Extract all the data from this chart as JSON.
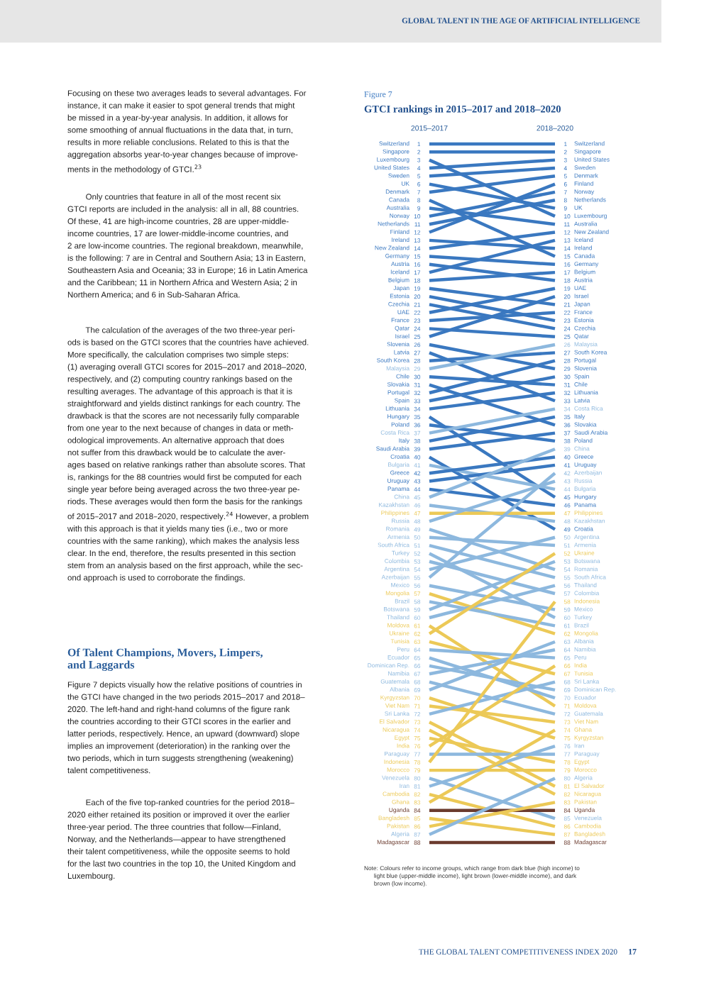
{
  "chart_data": {
    "type": "line",
    "subtitle": "Figure 7",
    "title": "GTCI rankings in 2015–2017 and 2018–2020",
    "categories": [
      "2015–2017",
      "2018–2020"
    ],
    "ylim": [
      88,
      1
    ],
    "yticks": [
      1,
      2,
      3,
      4,
      5,
      6,
      7,
      8,
      9,
      10,
      11,
      12,
      13,
      14,
      15,
      16,
      17,
      18,
      19,
      20,
      21,
      22,
      23,
      24,
      25,
      26,
      27,
      28,
      29,
      30,
      31,
      32,
      33,
      34,
      35,
      36,
      37,
      38,
      39,
      40,
      41,
      42,
      43,
      44,
      45,
      46,
      47,
      48,
      49,
      50,
      51,
      52,
      53,
      54,
      55,
      56,
      57,
      58,
      59,
      60,
      61,
      62,
      63,
      64,
      65,
      66,
      67,
      68,
      69,
      70,
      71,
      72,
      73,
      74,
      75,
      76,
      77,
      78,
      79,
      80,
      81,
      82,
      83,
      84,
      85,
      86,
      87,
      88
    ],
    "y2lim": [
      88,
      1
    ],
    "y2ticks": [
      1,
      2,
      3,
      4,
      5,
      6,
      7,
      8,
      9,
      10,
      11,
      12,
      13,
      14,
      15,
      16,
      17,
      18,
      19,
      20,
      21,
      22,
      23,
      24,
      25,
      26,
      27,
      28,
      29,
      30,
      31,
      32,
      33,
      34,
      35,
      36,
      37,
      38,
      39,
      40,
      41,
      42,
      43,
      44,
      45,
      46,
      47,
      48,
      49,
      50,
      51,
      52,
      53,
      54,
      55,
      56,
      57,
      58,
      59,
      60,
      61,
      62,
      63,
      64,
      65,
      66,
      67,
      68,
      69,
      70,
      71,
      72,
      73,
      74,
      75,
      76,
      77,
      78,
      79,
      80,
      81,
      82,
      83,
      84,
      85,
      86,
      87,
      88
    ],
    "marker": "none",
    "line_style": "solid",
    "annotations": [
      "GLOBAL TALENT IN THE AGE OF ARTIFICIAL INTELLIGENCE",
      "Focusing on these two averages leads to several advantages. For\ninstance, it can make it easier to spot general trends that might\nbe missed in a year-by-year analysis. In addition, it allows for\nsome smoothing of annual fluctuations in the data that, in turn,\nresults in more reliable conclusions. Related to this is that the\naggregation absorbs year-to-year changes because of improve-\nments in the methodology of GTCI.$^{23}$",
      "        Only countries that feature in all of the most recent six\nGTCI reports are included in the analysis: all in all, 88 countries.\nOf these, 41 are high-income countries, 28 are upper-middle-\nincome countries, 17 are lower-middle-income countries, and\n2 are low-income countries. The regional breakdown, meanwhile,\nis the following: 7 are in Central and Southern Asia; 13 in Eastern,\nSoutheastern Asia and Oceania; 33 in Europe; 16 in Latin America\nand the Caribbean; 11 in Northern Africa and Western Asia; 2 in\nNorthern America; and 6 in Sub-Saharan Africa.",
      "        The calculation of the averages of the two three-year peri-\nods is based on the GTCI scores that the countries have achieved.\nMore specifically, the calculation comprises two simple steps:\n(1) averaging overall GTCI scores for 2015–2017 and 2018–2020,\nrespectively, and (2) computing country rankings based on the\nresulting averages. The advantage of this approach is that it is\nstraightforward and yields distinct rankings for each country. The\ndrawback is that the scores are not necessarily fully comparable\nfrom one year to the next because of changes in data or meth-\nodological improvements. An alternative approach that does\nnot suffer from this drawback would be to calculate the aver-\nages based on relative rankings rather than absolute scores. That\nis, rankings for the 88 countries would first be computed for each\nsingle year before being averaged across the two three-year pe-\nriods. These averages would then form the basis for the rankings\nof 2015–2017 and 2018–2020, respectively.$^{24}$ However, a problem\nwith this approach is that it yields many ties (i.e., two or more\ncountries with the same ranking), which makes the analysis less\nclear. In the end, therefore, the results presented in this section\nstem from an analysis based on the first approach, while the sec-\nond approach is used to corroborate the findings.",
      "Of Talent Champions, Movers, Limpers,\nand Laggards",
      "Figure 7 depicts visually how the relative positions of countries in\nthe GTCI have changed in the two periods 2015–2017 and 2018–\n2020. The left-hand and right-hand columns of the figure rank\nthe countries according to their GTCI scores in the earlier and\nlatter periods, respectively. Hence, an upward (downward) slope\nimplies an improvement (deterioration) in the ranking over the\ntwo periods, which in turn suggests strengthening (weakening)\ntalent competitiveness.",
      "        Each of the five top-ranked countries for the period 2018–\n2020 either retained its position or improved it over the earlier\nthree-year period. The three countries that follow—Finland,\nNorway, and the Netherlands—appear to have strengthened\ntheir talent competitiveness, while the opposite seems to hold\nfor the last two countries in the top 10, the United Kingdom and\nLuxembourg.",
      "Note: Colours refer to income groups, which range from dark blue (high income) to\n      light blue (upper-middle income), light brown (lower-middle income), and dark\n      brown (low income).",
      "THE GLOBAL TALENT COMPETITIVENESS INDEX 2020",
      "17"
    ],
    "series": [
      {
        "name": "Switzerland",
        "color": "#3a78c0",
        "values": [
          1,
          1
        ]
      },
      {
        "name": "Singapore",
        "color": "#3a78c0",
        "values": [
          2,
          2
        ]
      },
      {
        "name": "Luxembourg",
        "color": "#3a78c0",
        "values": [
          3,
          10
        ]
      },
      {
        "name": "United States",
        "color": "#3a78c0",
        "values": [
          4,
          3
        ]
      },
      {
        "name": "Sweden",
        "color": "#3a78c0",
        "values": [
          5,
          4
        ]
      },
      {
        "name": "UK",
        "color": "#3a78c0",
        "values": [
          6,
          9
        ]
      },
      {
        "name": "Denmark",
        "color": "#3a78c0",
        "values": [
          7,
          5
        ]
      },
      {
        "name": "Canada",
        "color": "#3a78c0",
        "values": [
          8,
          15
        ]
      },
      {
        "name": "Australia",
        "color": "#3a78c0",
        "values": [
          9,
          11
        ]
      },
      {
        "name": "Norway",
        "color": "#3a78c0",
        "values": [
          10,
          7
        ]
      },
      {
        "name": "Netherlands",
        "color": "#3a78c0",
        "values": [
          11,
          8
        ]
      },
      {
        "name": "Finland",
        "color": "#3a78c0",
        "values": [
          12,
          6
        ]
      },
      {
        "name": "Ireland",
        "color": "#3a78c0",
        "values": [
          13,
          14
        ]
      },
      {
        "name": "New Zealand",
        "color": "#3a78c0",
        "values": [
          14,
          12
        ]
      },
      {
        "name": "Germany",
        "color": "#3a78c0",
        "values": [
          15,
          16
        ]
      },
      {
        "name": "Austria",
        "color": "#3a78c0",
        "values": [
          16,
          18
        ]
      },
      {
        "name": "Iceland",
        "color": "#3a78c0",
        "values": [
          17,
          13
        ]
      },
      {
        "name": "Belgium",
        "color": "#3a78c0",
        "values": [
          18,
          17
        ]
      },
      {
        "name": "Japan",
        "color": "#3a78c0",
        "values": [
          19,
          21
        ]
      },
      {
        "name": "Estonia",
        "color": "#3a78c0",
        "values": [
          20,
          23
        ]
      },
      {
        "name": "Czechia",
        "color": "#3a78c0",
        "values": [
          21,
          24
        ]
      },
      {
        "name": "UAE",
        "color": "#3a78c0",
        "values": [
          22,
          19
        ]
      },
      {
        "name": "France",
        "color": "#3a78c0",
        "values": [
          23,
          22
        ]
      },
      {
        "name": "Qatar",
        "color": "#3a78c0",
        "values": [
          24,
          25
        ]
      },
      {
        "name": "Israel",
        "color": "#3a78c0",
        "values": [
          25,
          20
        ]
      },
      {
        "name": "Slovenia",
        "color": "#3a78c0",
        "values": [
          26,
          29
        ]
      },
      {
        "name": "Latvia",
        "color": "#3a78c0",
        "values": [
          27,
          33
        ]
      },
      {
        "name": "South Korea",
        "color": "#3a78c0",
        "values": [
          28,
          27
        ]
      },
      {
        "name": "Malaysia",
        "color": "#8db8de",
        "values": [
          29,
          26
        ]
      },
      {
        "name": "Chile",
        "color": "#3a78c0",
        "values": [
          30,
          31
        ]
      },
      {
        "name": "Slovakia",
        "color": "#3a78c0",
        "values": [
          31,
          36
        ]
      },
      {
        "name": "Portugal",
        "color": "#3a78c0",
        "values": [
          32,
          28
        ]
      },
      {
        "name": "Spain",
        "color": "#3a78c0",
        "values": [
          33,
          30
        ]
      },
      {
        "name": "Lithuania",
        "color": "#3a78c0",
        "values": [
          34,
          32
        ]
      },
      {
        "name": "Hungary",
        "color": "#3a78c0",
        "values": [
          35,
          45
        ]
      },
      {
        "name": "Poland",
        "color": "#3a78c0",
        "values": [
          36,
          38
        ]
      },
      {
        "name": "Costa Rica",
        "color": "#8db8de",
        "values": [
          37,
          34
        ]
      },
      {
        "name": "Italy",
        "color": "#3a78c0",
        "values": [
          38,
          35
        ]
      },
      {
        "name": "Saudi Arabia",
        "color": "#3a78c0",
        "values": [
          39,
          37
        ]
      },
      {
        "name": "Croatia",
        "color": "#3a78c0",
        "values": [
          40,
          49
        ]
      },
      {
        "name": "Bulgaria",
        "color": "#8db8de",
        "values": [
          41,
          44
        ]
      },
      {
        "name": "Greece",
        "color": "#3a78c0",
        "values": [
          42,
          40
        ]
      },
      {
        "name": "Uruguay",
        "color": "#3a78c0",
        "values": [
          43,
          41
        ]
      },
      {
        "name": "Panama",
        "color": "#3a78c0",
        "values": [
          44,
          46
        ]
      },
      {
        "name": "China",
        "color": "#8db8de",
        "values": [
          45,
          39
        ]
      },
      {
        "name": "Kazakhstan",
        "color": "#8db8de",
        "values": [
          46,
          48
        ]
      },
      {
        "name": "Philippines",
        "color": "#ecc957",
        "values": [
          47,
          47
        ]
      },
      {
        "name": "Russia",
        "color": "#8db8de",
        "values": [
          48,
          43
        ]
      },
      {
        "name": "Romania",
        "color": "#8db8de",
        "values": [
          49,
          54
        ]
      },
      {
        "name": "Armenia",
        "color": "#8db8de",
        "values": [
          50,
          51
        ]
      },
      {
        "name": "South Africa",
        "color": "#8db8de",
        "values": [
          51,
          55
        ]
      },
      {
        "name": "Turkey",
        "color": "#8db8de",
        "values": [
          52,
          60
        ]
      },
      {
        "name": "Colombia",
        "color": "#8db8de",
        "values": [
          53,
          57
        ]
      },
      {
        "name": "Argentina",
        "color": "#8db8de",
        "values": [
          54,
          50
        ]
      },
      {
        "name": "Azerbaijan",
        "color": "#8db8de",
        "values": [
          55,
          42
        ]
      },
      {
        "name": "Mexico",
        "color": "#8db8de",
        "values": [
          56,
          59
        ]
      },
      {
        "name": "Mongolia",
        "color": "#ecc957",
        "values": [
          57,
          62
        ]
      },
      {
        "name": "Brazil",
        "color": "#8db8de",
        "values": [
          58,
          61
        ]
      },
      {
        "name": "Botswana",
        "color": "#8db8de",
        "values": [
          59,
          53
        ]
      },
      {
        "name": "Thailand",
        "color": "#8db8de",
        "values": [
          60,
          56
        ]
      },
      {
        "name": "Moldova",
        "color": "#ecc957",
        "values": [
          61,
          71
        ]
      },
      {
        "name": "Ukraine",
        "color": "#ecc957",
        "values": [
          62,
          52
        ]
      },
      {
        "name": "Tunisia",
        "color": "#ecc957",
        "values": [
          63,
          67
        ]
      },
      {
        "name": "Peru",
        "color": "#8db8de",
        "values": [
          64,
          65
        ]
      },
      {
        "name": "Ecuador",
        "color": "#8db8de",
        "values": [
          65,
          70
        ]
      },
      {
        "name": "Dominican Rep.",
        "color": "#8db8de",
        "values": [
          66,
          69
        ]
      },
      {
        "name": "Namibia",
        "color": "#8db8de",
        "values": [
          67,
          64
        ]
      },
      {
        "name": "Guatemala",
        "color": "#8db8de",
        "values": [
          68,
          72
        ]
      },
      {
        "name": "Albania",
        "color": "#8db8de",
        "values": [
          69,
          63
        ]
      },
      {
        "name": "Kyrgyzstan",
        "color": "#ecc957",
        "values": [
          70,
          75
        ]
      },
      {
        "name": "Viet Nam",
        "color": "#ecc957",
        "values": [
          71,
          73
        ]
      },
      {
        "name": "Sri Lanka",
        "color": "#8db8de",
        "values": [
          72,
          68
        ]
      },
      {
        "name": "El Salvador",
        "color": "#ecc957",
        "values": [
          73,
          81
        ]
      },
      {
        "name": "Nicaragua",
        "color": "#ecc957",
        "values": [
          74,
          82
        ]
      },
      {
        "name": "Egypt",
        "color": "#ecc957",
        "values": [
          75,
          78
        ]
      },
      {
        "name": "India",
        "color": "#ecc957",
        "values": [
          76,
          66
        ]
      },
      {
        "name": "Paraguay",
        "color": "#8db8de",
        "values": [
          77,
          77
        ]
      },
      {
        "name": "Indonesia",
        "color": "#ecc957",
        "values": [
          78,
          58
        ]
      },
      {
        "name": "Morocco",
        "color": "#ecc957",
        "values": [
          79,
          79
        ]
      },
      {
        "name": "Venezuela",
        "color": "#8db8de",
        "values": [
          80,
          85
        ]
      },
      {
        "name": "Iran",
        "color": "#8db8de",
        "values": [
          81,
          76
        ]
      },
      {
        "name": "Cambodia",
        "color": "#ecc957",
        "values": [
          82,
          86
        ]
      },
      {
        "name": "Ghana",
        "color": "#ecc957",
        "values": [
          83,
          74
        ]
      },
      {
        "name": "Uganda",
        "color": "#6b3b2e",
        "values": [
          84,
          84
        ]
      },
      {
        "name": "Bangladesh",
        "color": "#ecc957",
        "values": [
          85,
          87
        ]
      },
      {
        "name": "Pakistan",
        "color": "#ecc957",
        "values": [
          86,
          83
        ]
      },
      {
        "name": "Algeria",
        "color": "#8db8de",
        "values": [
          87,
          80
        ]
      },
      {
        "name": "Madagascar",
        "color": "#6b3b2e",
        "values": [
          88,
          88
        ]
      }
    ]
  }
}
